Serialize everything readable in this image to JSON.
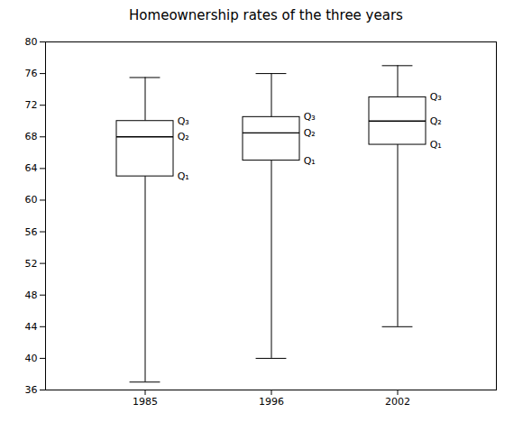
{
  "chart_data": {
    "type": "box",
    "title": "Homeownership rates of the three years",
    "categories": [
      "1985",
      "1996",
      "2002"
    ],
    "boxes": [
      {
        "whisker_low": 37,
        "q1": 63,
        "median": 68,
        "q3": 70,
        "whisker_high": 75.5
      },
      {
        "whisker_low": 40,
        "q1": 65,
        "median": 68.5,
        "q3": 70.5,
        "whisker_high": 76
      },
      {
        "whisker_low": 44,
        "q1": 67,
        "median": 70,
        "q3": 73,
        "whisker_high": 77
      }
    ],
    "annotations": {
      "q3": "Q₃",
      "median": "Q₂",
      "q1": "Q₁"
    },
    "ylim": [
      36,
      80
    ],
    "yticks": [
      36,
      40,
      44,
      48,
      52,
      56,
      60,
      64,
      68,
      72,
      76,
      80
    ]
  }
}
